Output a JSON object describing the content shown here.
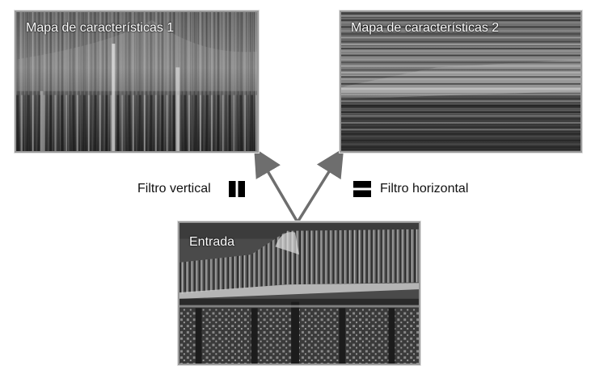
{
  "feature_map_1": {
    "label": "Mapa de características 1"
  },
  "feature_map_2": {
    "label": "Mapa de características 2"
  },
  "input": {
    "label": "Entrada"
  },
  "vertical_filter": {
    "label": "Filtro vertical",
    "icon": "vertical-filter-icon"
  },
  "horizontal_filter": {
    "label": "Filtro horizontal",
    "icon": "horizontal-filter-icon"
  },
  "colors": {
    "arrow": "#6e6e6e",
    "frame": "#9a9a9a"
  }
}
